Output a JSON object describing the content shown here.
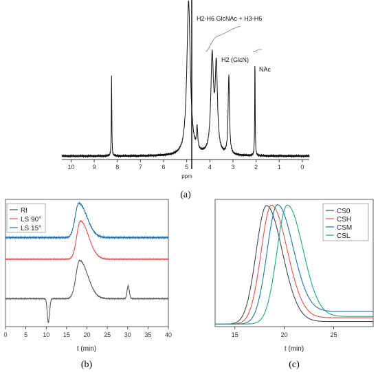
{
  "chart_data": [
    {
      "panel": "(a)",
      "type": "line",
      "xlabel": "ppm",
      "xlim": [
        10.4,
        -0.3
      ],
      "x_ticks": [
        "10",
        "9",
        "8",
        "7",
        "6",
        "5",
        "4",
        "3",
        "2",
        "1",
        "0"
      ],
      "annotations": [
        {
          "text": "H2-H6 GlcNAc + H3-H6",
          "x": 4.8
        },
        {
          "text": "H2 (GlcN)",
          "x": 3.2
        },
        {
          "text": "NAc",
          "x": 2.0
        }
      ],
      "peaks": [
        {
          "ppm": 8.25,
          "height": 0.52
        },
        {
          "ppm": 4.92,
          "height": 1.0
        },
        {
          "ppm": 4.55,
          "height": 0.14
        },
        {
          "ppm": 3.9,
          "height": 0.62
        },
        {
          "ppm": 3.72,
          "height": 0.55
        },
        {
          "ppm": 3.18,
          "height": 0.51
        },
        {
          "ppm": 2.05,
          "height": 0.64
        }
      ]
    },
    {
      "panel": "(b)",
      "type": "line",
      "xlabel": "t (min)",
      "xlim": [
        0,
        40
      ],
      "x_ticks": [
        "0",
        "5",
        "10",
        "15",
        "20",
        "25",
        "30",
        "35",
        "40"
      ],
      "series": [
        {
          "name": "RI",
          "color": "#555555",
          "baseline": 0.22,
          "peaks": [
            {
              "t": 18.2,
              "height": 0.3
            },
            {
              "t": 30.1,
              "height": 0.1
            },
            {
              "t": 10.5,
              "height": -0.19
            }
          ]
        },
        {
          "name": "LS 90°",
          "color": "#e0504e",
          "baseline": 0.53,
          "peaks": [
            {
              "t": 18.4,
              "height": 0.3
            }
          ]
        },
        {
          "name": "LS 15°",
          "color": "#1f6fae",
          "baseline": 0.7,
          "peaks": [
            {
              "t": 18.0,
              "height": 0.27
            }
          ]
        }
      ]
    },
    {
      "panel": "(c)",
      "type": "line",
      "xlabel": "t (min)",
      "xlim": [
        13,
        29
      ],
      "x_ticks": [
        "15",
        "20",
        "25"
      ],
      "series": [
        {
          "name": "CS0",
          "color": "#444444",
          "peak_t": 18.2
        },
        {
          "name": "CSH",
          "color": "#e0504e",
          "peak_t": 18.7
        },
        {
          "name": "CSM",
          "color": "#1f6fae",
          "peak_t": 19.3
        },
        {
          "name": "CSL",
          "color": "#1aa383",
          "peak_t": 20.3
        }
      ]
    }
  ]
}
